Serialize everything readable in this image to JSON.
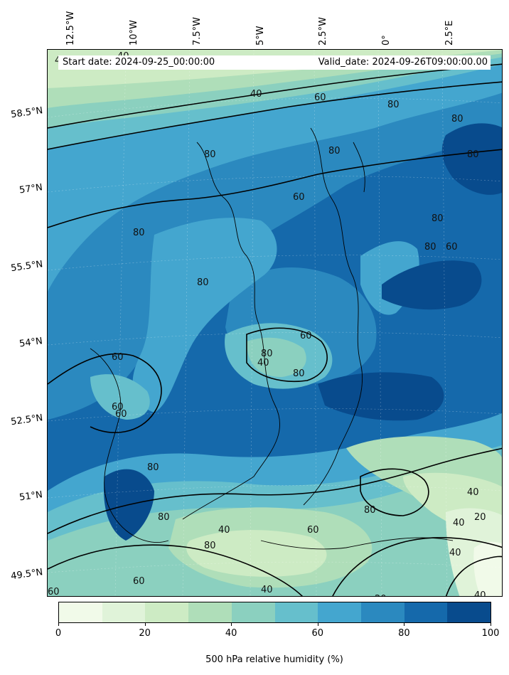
{
  "header": {
    "start_date": "Start date: 2024-09-25_00:00:00",
    "valid_date": "Valid_date: 2024-09-26T09:00:00.00"
  },
  "lon_labels": [
    "12.5°W",
    "10°W",
    "7.5°W",
    "5°W",
    "2.5°W",
    "0°",
    "2.5°E"
  ],
  "lat_labels": [
    "58.5°N",
    "57°N",
    "55.5°N",
    "54°N",
    "52.5°N",
    "51°N",
    "49.5°N"
  ],
  "colorbar": {
    "title": "500 hPa relative humidity (%)",
    "tick_labels": [
      "0",
      "20",
      "40",
      "60",
      "80",
      "100"
    ],
    "colors": [
      "#f1fae9",
      "#e0f3d9",
      "#cdebc4",
      "#afdeb9",
      "#8bd0bf",
      "#66bfcc",
      "#44a6cf",
      "#2b89bf",
      "#1569ab",
      "#084b8d"
    ]
  },
  "contour_labels": [
    "40",
    "40",
    "40",
    "60",
    "80",
    "80",
    "80",
    "60",
    "80",
    "80",
    "80",
    "80",
    "60",
    "80",
    "80",
    "80",
    "60",
    "80",
    "60",
    "40",
    "60",
    "80",
    "80",
    "60",
    "40",
    "40",
    "40",
    "80",
    "60",
    "40",
    "20",
    "40",
    "20",
    "40",
    "60",
    "60",
    "80"
  ]
}
